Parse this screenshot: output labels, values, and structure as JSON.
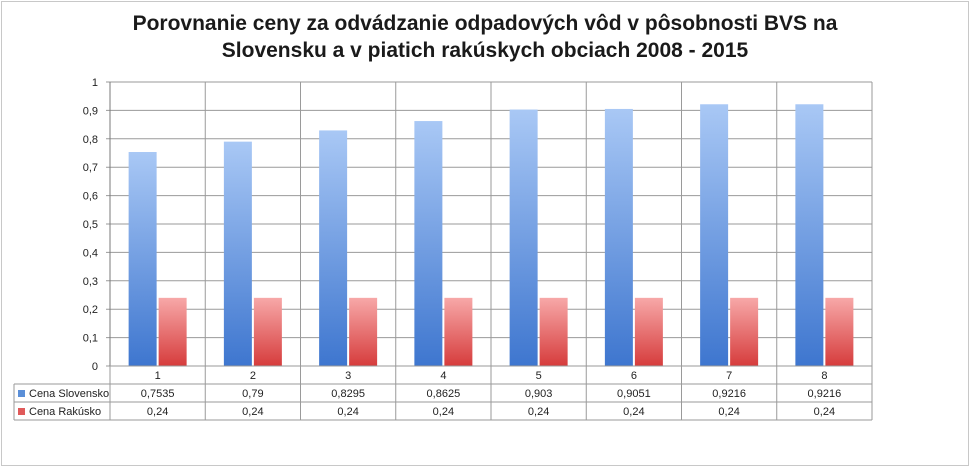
{
  "chart_data": {
    "type": "bar",
    "title_lines": [
      "Porovnanie ceny za odvádzanie odpadových vôd v pôsobnosti BVS na",
      "Slovensku a v piatich rakúskych obciach 2008 - 2015"
    ],
    "categories": [
      "1",
      "2",
      "3",
      "4",
      "5",
      "6",
      "7",
      "8"
    ],
    "ylim": [
      0,
      1
    ],
    "y_ticks": [
      "0",
      "0,1",
      "0,2",
      "0,3",
      "0,4",
      "0,5",
      "0,6",
      "0,7",
      "0,8",
      "0,9",
      "1"
    ],
    "grid": true,
    "legend_position": "data-table-below",
    "series": [
      {
        "name": "Cena Slovensko",
        "color": "#5b8fd8",
        "values": [
          0.7535,
          0.79,
          0.8295,
          0.8625,
          0.903,
          0.9051,
          0.9216,
          0.9216
        ],
        "labels": [
          "0,7535",
          "0,79",
          "0,8295",
          "0,8625",
          "0,903",
          "0,9051",
          "0,9216",
          "0,9216"
        ]
      },
      {
        "name": "Cena Rakúsko",
        "color": "#e05a5a",
        "values": [
          0.24,
          0.24,
          0.24,
          0.24,
          0.24,
          0.24,
          0.24,
          0.24
        ],
        "labels": [
          "0,24",
          "0,24",
          "0,24",
          "0,24",
          "0,24",
          "0,24",
          "0,24",
          "0,24"
        ]
      }
    ]
  }
}
